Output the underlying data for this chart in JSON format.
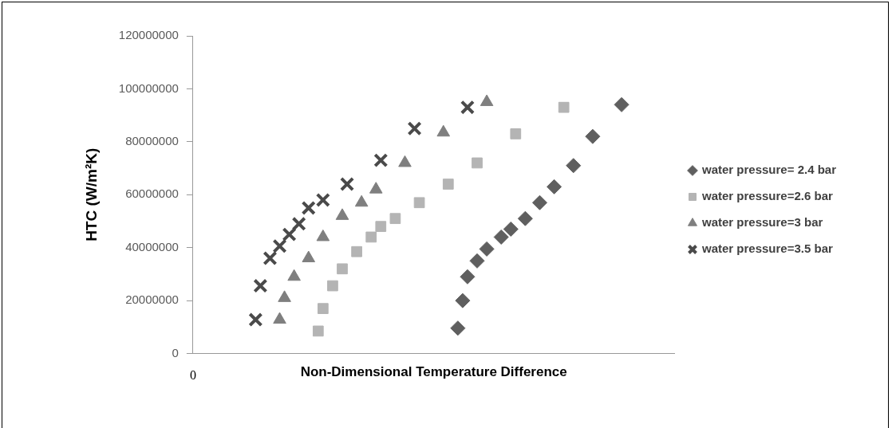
{
  "chart_data": {
    "type": "scatter",
    "xlabel": "Non-Dimensional Temperature Difference",
    "ylabel": "HTC (W/m²K)",
    "categories": [
      null,
      null,
      null,
      null,
      null,
      null,
      null,
      null,
      null,
      null,
      null,
      null,
      null,
      null,
      null,
      null,
      null,
      null,
      null,
      null,
      null,
      null,
      null,
      null,
      null,
      null,
      null,
      null,
      null,
      null,
      null,
      null,
      null,
      null,
      null,
      null,
      null,
      null,
      null,
      null,
      null,
      null,
      null,
      null,
      null,
      null,
      null,
      null,
      null,
      null,
      null,
      null,
      null,
      null,
      null,
      null,
      null,
      null,
      null,
      null,
      null,
      null,
      null,
      null,
      null,
      null,
      null,
      null,
      null,
      null,
      null,
      null,
      null,
      null,
      null,
      null,
      null,
      null,
      null,
      null,
      null,
      null,
      null,
      null,
      null,
      null,
      null,
      null,
      null,
      null,
      null,
      null,
      null,
      null,
      null,
      null,
      null,
      null,
      null,
      null,
      null
    ],
    "series": [
      {
        "name": "water pressure= 2.4 bar",
        "color": "#5f5f5f",
        "marker": "diamond",
        "values": [
          null,
          null,
          null,
          null,
          null,
          null,
          null,
          null,
          null,
          null,
          null,
          null,
          null,
          null,
          null,
          null,
          null,
          null,
          null,
          null,
          null,
          null,
          null,
          null,
          null,
          null,
          null,
          null,
          null,
          null,
          null,
          null,
          null,
          null,
          null,
          null,
          null,
          null,
          null,
          null,
          null,
          null,
          null,
          null,
          null,
          null,
          null,
          null,
          null,
          null,
          null,
          null,
          null,
          null,
          null,
          9600000,
          20000000,
          29000000,
          null,
          35000000,
          null,
          39500000,
          null,
          null,
          44000000,
          null,
          47000000,
          null,
          null,
          51000000,
          null,
          null,
          57000000,
          null,
          null,
          63000000,
          null,
          null,
          null,
          71000000,
          null,
          null,
          null,
          82000000,
          null,
          null,
          null,
          null,
          null,
          94000000,
          null,
          null,
          null,
          null,
          null,
          null,
          null,
          null,
          null,
          null,
          null
        ]
      },
      {
        "name": "water pressure=2.6 bar",
        "color": "#b4b4b4",
        "marker": "square",
        "values": [
          null,
          null,
          null,
          null,
          null,
          null,
          null,
          null,
          null,
          null,
          null,
          null,
          null,
          null,
          null,
          null,
          null,
          null,
          null,
          null,
          null,
          null,
          null,
          null,
          null,
          null,
          8500000,
          17000000,
          null,
          25600000,
          null,
          32000000,
          null,
          null,
          38500000,
          null,
          null,
          44000000,
          null,
          48000000,
          null,
          null,
          51000000,
          null,
          null,
          null,
          null,
          57000000,
          null,
          null,
          null,
          null,
          null,
          64000000,
          null,
          null,
          null,
          null,
          null,
          72000000,
          null,
          null,
          null,
          null,
          null,
          null,
          null,
          83000000,
          null,
          null,
          null,
          null,
          null,
          null,
          null,
          null,
          null,
          93000000,
          null,
          null,
          null,
          null,
          null,
          null,
          null,
          null,
          null,
          null,
          null,
          null,
          null,
          null,
          null,
          null,
          null,
          null,
          null,
          null,
          null,
          null,
          null
        ]
      },
      {
        "name": "water pressure=3 bar",
        "color": "#7f7f7f",
        "marker": "triangle",
        "values": [
          null,
          null,
          null,
          null,
          null,
          null,
          null,
          null,
          null,
          null,
          null,
          null,
          null,
          null,
          null,
          null,
          null,
          null,
          12800000,
          21000000,
          null,
          29000000,
          null,
          null,
          36000000,
          null,
          null,
          44000000,
          null,
          null,
          null,
          52000000,
          null,
          null,
          null,
          57000000,
          null,
          null,
          62000000,
          null,
          null,
          null,
          null,
          null,
          72000000,
          null,
          null,
          null,
          null,
          null,
          null,
          null,
          83500000,
          null,
          null,
          null,
          null,
          null,
          null,
          null,
          null,
          95000000,
          null,
          null,
          null,
          null,
          null,
          null,
          null,
          null,
          null,
          null,
          null,
          null,
          null,
          null,
          null,
          null,
          null,
          null,
          null,
          null,
          null,
          null,
          null,
          null,
          null,
          null,
          null,
          null,
          null,
          null,
          null,
          null,
          null,
          null,
          null,
          null,
          null,
          null,
          null
        ]
      },
      {
        "name": "water pressure=3.5 bar",
        "color": "#4a4a4a",
        "marker": "cross",
        "values": [
          null,
          null,
          null,
          null,
          null,
          null,
          null,
          null,
          null,
          null,
          null,
          null,
          null,
          12800000,
          25600000,
          null,
          36000000,
          null,
          40600000,
          null,
          45000000,
          null,
          49000000,
          null,
          55000000,
          null,
          null,
          58000000,
          null,
          null,
          null,
          null,
          64000000,
          null,
          null,
          null,
          null,
          null,
          null,
          73000000,
          null,
          null,
          null,
          null,
          null,
          null,
          85000000,
          null,
          null,
          null,
          null,
          null,
          null,
          null,
          null,
          null,
          null,
          93000000,
          null,
          null,
          null,
          null,
          null,
          null,
          null,
          null,
          null,
          null,
          null,
          null,
          null,
          null,
          null,
          null,
          null,
          null,
          null,
          null,
          null,
          null,
          null,
          null,
          null,
          null,
          null,
          null,
          null,
          null,
          null,
          null,
          null,
          null,
          null,
          null,
          null,
          null,
          null,
          null,
          null,
          null,
          null
        ]
      }
    ],
    "ylim": [
      0,
      120000000
    ],
    "yticks": [
      0,
      20000000,
      40000000,
      60000000,
      80000000,
      100000000,
      120000000
    ],
    "grid": false,
    "legend": "right",
    "annotations": [
      "0"
    ]
  }
}
